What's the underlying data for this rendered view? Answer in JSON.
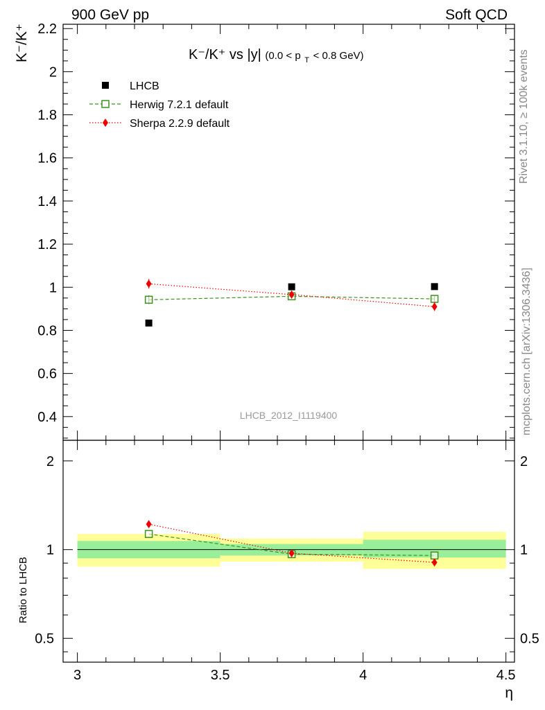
{
  "header": {
    "left": "900 GeV pp",
    "right": "Soft QCD"
  },
  "side_labels": {
    "rivet": "Rivet 3.1.10, ≥ 100k events",
    "mcplots": "mcplots.cern.ch [arXiv:1306.3436]"
  },
  "watermark": "LHCB_2012_I1119400",
  "chart_data": [
    {
      "type": "scatter",
      "title": {
        "main": "K⁻/K⁺ vs |y|",
        "cut_open": "(0.0 < p",
        "cut_sub": "T",
        "cut_close": " < 0.8 GeV)"
      },
      "ylabel": "K⁻/K⁺",
      "xlim": [
        2.95,
        4.53
      ],
      "ylim": [
        0.29,
        2.22
      ],
      "yticks": [
        "0.4",
        "0.6",
        "0.8",
        "1",
        "1.2",
        "1.4",
        "1.6",
        "1.8",
        "2",
        "2.2"
      ],
      "grid": false,
      "legend_position": "top-left",
      "series": [
        {
          "name": "LHCB",
          "color": "#000000",
          "marker": "filled-square",
          "x": [
            3.25,
            3.75,
            4.25
          ],
          "y": [
            0.834,
            1.002,
            1.003
          ]
        },
        {
          "name": "Herwig 7.2.1 default",
          "color": "#3f8f1f",
          "marker": "open-square",
          "line": "dashed",
          "x": [
            3.25,
            3.75,
            4.25
          ],
          "y": [
            0.942,
            0.958,
            0.946
          ],
          "err": [
            0.02,
            0.012,
            0.015
          ]
        },
        {
          "name": "Sherpa 2.2.9 default",
          "color": "#ee0000",
          "marker": "diamond",
          "line": "dotted",
          "x": [
            3.25,
            3.75,
            4.25
          ],
          "y": [
            1.016,
            0.966,
            0.91
          ],
          "err": [
            0.022,
            0.014,
            0.02
          ]
        }
      ]
    },
    {
      "type": "scatter",
      "ylabel": "Ratio to LHCB",
      "xlabel": "η",
      "xlim": [
        2.95,
        4.53
      ],
      "ylim": [
        0.415,
        2.35
      ],
      "log_y": true,
      "xticks": [
        "3",
        "3.5",
        "4",
        "4.5"
      ],
      "yticks": [
        "0.5",
        "1",
        "2"
      ],
      "reference_line": 1,
      "bands": [
        {
          "x0": 3.0,
          "x1": 3.5,
          "inner": [
            0.935,
            1.07
          ],
          "outer": [
            0.875,
            1.13
          ]
        },
        {
          "x0": 3.5,
          "x1": 4.0,
          "inner": [
            0.955,
            1.045
          ],
          "outer": [
            0.91,
            1.09
          ]
        },
        {
          "x0": 4.0,
          "x1": 4.5,
          "inner": [
            0.94,
            1.08
          ],
          "outer": [
            0.86,
            1.15
          ]
        }
      ],
      "band_colors": {
        "inner": "#99ee99",
        "outer": "#ffff99"
      },
      "series": [
        {
          "name": "Herwig 7.2.1 default",
          "color": "#3f8f1f",
          "x": [
            3.25,
            3.75,
            4.25
          ],
          "y": [
            1.13,
            0.965,
            0.955
          ]
        },
        {
          "name": "Sherpa 2.2.9 default",
          "color": "#ee0000",
          "x": [
            3.25,
            3.75,
            4.25
          ],
          "y": [
            1.22,
            0.972,
            0.905
          ]
        }
      ]
    }
  ]
}
